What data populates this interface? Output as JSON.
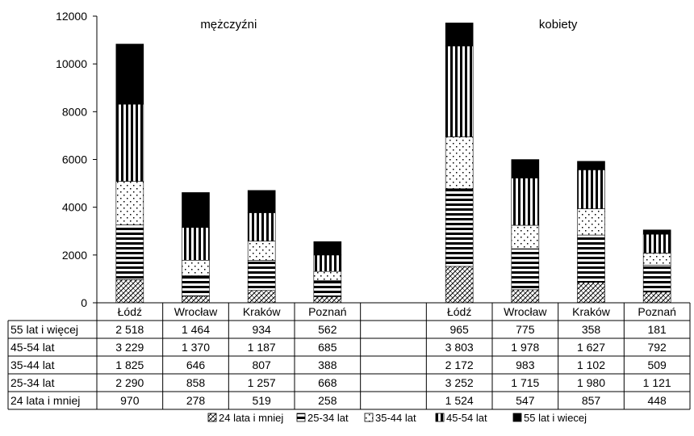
{
  "chart_data": {
    "type": "bar",
    "stacked": true,
    "title": "",
    "xlabel": "",
    "ylabel": "",
    "ylim": [
      0,
      12000
    ],
    "yticks": [
      0,
      2000,
      4000,
      6000,
      8000,
      10000,
      12000
    ],
    "ytick_labels": [
      "0",
      "2000",
      "4000",
      "6000",
      "8000",
      "10000",
      "12000"
    ],
    "grid": false,
    "legend_position": "bottom",
    "groups": [
      {
        "label": "mężczyźni",
        "categories": [
          "Łódź",
          "Wrocław",
          "Kraków",
          "Poznań"
        ],
        "series": [
          {
            "name": "24 lata i mniej",
            "values": [
              970,
              278,
              519,
              258
            ],
            "labels": [
              "970",
              "278",
              "519",
              "258"
            ]
          },
          {
            "name": "25-34 lat",
            "values": [
              2290,
              858,
              1257,
              668
            ],
            "labels": [
              "2 290",
              "858",
              "1 257",
              "668"
            ]
          },
          {
            "name": "35-44 lat",
            "values": [
              1825,
              646,
              807,
              388
            ],
            "labels": [
              "1 825",
              "646",
              "807",
              "388"
            ]
          },
          {
            "name": "45-54 lat",
            "values": [
              3229,
              1370,
              1187,
              685
            ],
            "labels": [
              "3 229",
              "1 370",
              "1 187",
              "685"
            ]
          },
          {
            "name": "55 lat i więcej",
            "values": [
              2518,
              1464,
              934,
              562
            ],
            "labels": [
              "2 518",
              "1 464",
              "934",
              "562"
            ]
          }
        ]
      },
      {
        "label": "kobiety",
        "categories": [
          "Łódź",
          "Wrocław",
          "Kraków",
          "Poznań"
        ],
        "series": [
          {
            "name": "24 lata i mniej",
            "values": [
              1524,
              547,
              857,
              448
            ],
            "labels": [
              "1 524",
              "547",
              "857",
              "448"
            ]
          },
          {
            "name": "25-34 lat",
            "values": [
              3252,
              1715,
              1980,
              1121
            ],
            "labels": [
              "3 252",
              "1 715",
              "1 980",
              "1 121"
            ]
          },
          {
            "name": "35-44 lat",
            "values": [
              2172,
              983,
              1102,
              509
            ],
            "labels": [
              "2 172",
              "983",
              "1 102",
              "509"
            ]
          },
          {
            "name": "45-54 lat",
            "values": [
              3803,
              1978,
              1627,
              792
            ],
            "labels": [
              "3 803",
              "1 978",
              "1 627",
              "792"
            ]
          },
          {
            "name": "55 lat i więcej",
            "values": [
              965,
              775,
              358,
              181
            ],
            "labels": [
              "965",
              "775",
              "358",
              "181"
            ]
          }
        ]
      }
    ],
    "table_rows": [
      "55 lat i więcej",
      "45-54 lat",
      "35-44 lat",
      "25-34 lat",
      "24 lata i mniej"
    ],
    "legend": [
      {
        "label": "24 lata i mniej",
        "pattern": "diagonal-hatch"
      },
      {
        "label": "25-34 lat",
        "pattern": "horizontal-stripes"
      },
      {
        "label": "35-44 lat",
        "pattern": "dots"
      },
      {
        "label": "45-54 lat",
        "pattern": "vertical-stripes"
      },
      {
        "label": "55 lat i wiecej",
        "pattern": "solid-black"
      }
    ],
    "colors": {
      "ink": "#000000",
      "background": "#ffffff"
    }
  }
}
